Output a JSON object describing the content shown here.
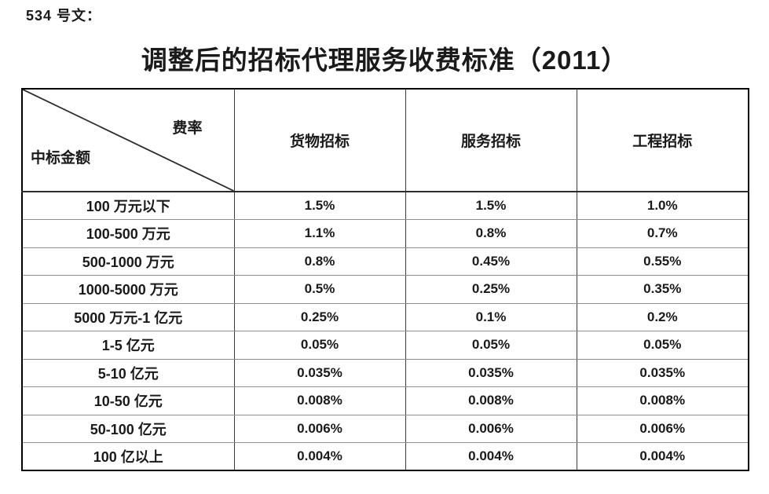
{
  "doc": {
    "doc_number_label": "534 号文：",
    "title": "调整后的招标代理服务收费标准（2011）"
  },
  "table": {
    "corner": {
      "top_right": "费率",
      "bottom_left": "中标金额"
    },
    "columns": [
      "货物招标",
      "服务招标",
      "工程招标"
    ],
    "rows": [
      {
        "label": "100 万元以下",
        "values": [
          "1.5%",
          "1.5%",
          "1.0%"
        ]
      },
      {
        "label": "100-500 万元",
        "values": [
          "1.1%",
          "0.8%",
          "0.7%"
        ]
      },
      {
        "label": "500-1000 万元",
        "values": [
          "0.8%",
          "0.45%",
          "0.55%"
        ]
      },
      {
        "label": "1000-5000 万元",
        "values": [
          "0.5%",
          "0.25%",
          "0.35%"
        ]
      },
      {
        "label": "5000 万元-1 亿元",
        "values": [
          "0.25%",
          "0.1%",
          "0.2%"
        ]
      },
      {
        "label": "1-5 亿元",
        "values": [
          "0.05%",
          "0.05%",
          "0.05%"
        ]
      },
      {
        "label": "5-10 亿元",
        "values": [
          "0.035%",
          "0.035%",
          "0.035%"
        ]
      },
      {
        "label": "10-50 亿元",
        "values": [
          "0.008%",
          "0.008%",
          "0.008%"
        ]
      },
      {
        "label": "50-100 亿元",
        "values": [
          "0.006%",
          "0.006%",
          "0.006%"
        ]
      },
      {
        "label": "100 亿以上",
        "values": [
          "0.004%",
          "0.004%",
          "0.004%"
        ]
      }
    ]
  },
  "colors": {
    "text": "#1a1a1a",
    "border_outer": "#000000",
    "grid_vertical": "#3a3a3a",
    "grid_horizontal": "#8f8f8f",
    "diagonal_line": "#2b2b2b"
  }
}
